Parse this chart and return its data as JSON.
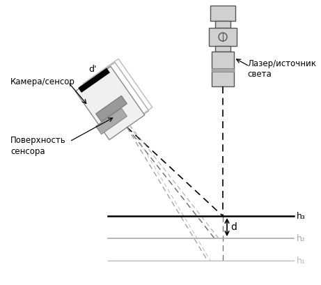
{
  "background_color": "#ffffff",
  "camera_label": "Камера/сенсор",
  "sensor_surface_label": "Поверхность\nсенсора",
  "laser_label": "Лазер/источник\nсвета",
  "d_prime_label": "d'",
  "d_label": "d",
  "h1_label": "h₁",
  "h2_label": "h₂",
  "h3_label": "h₃"
}
